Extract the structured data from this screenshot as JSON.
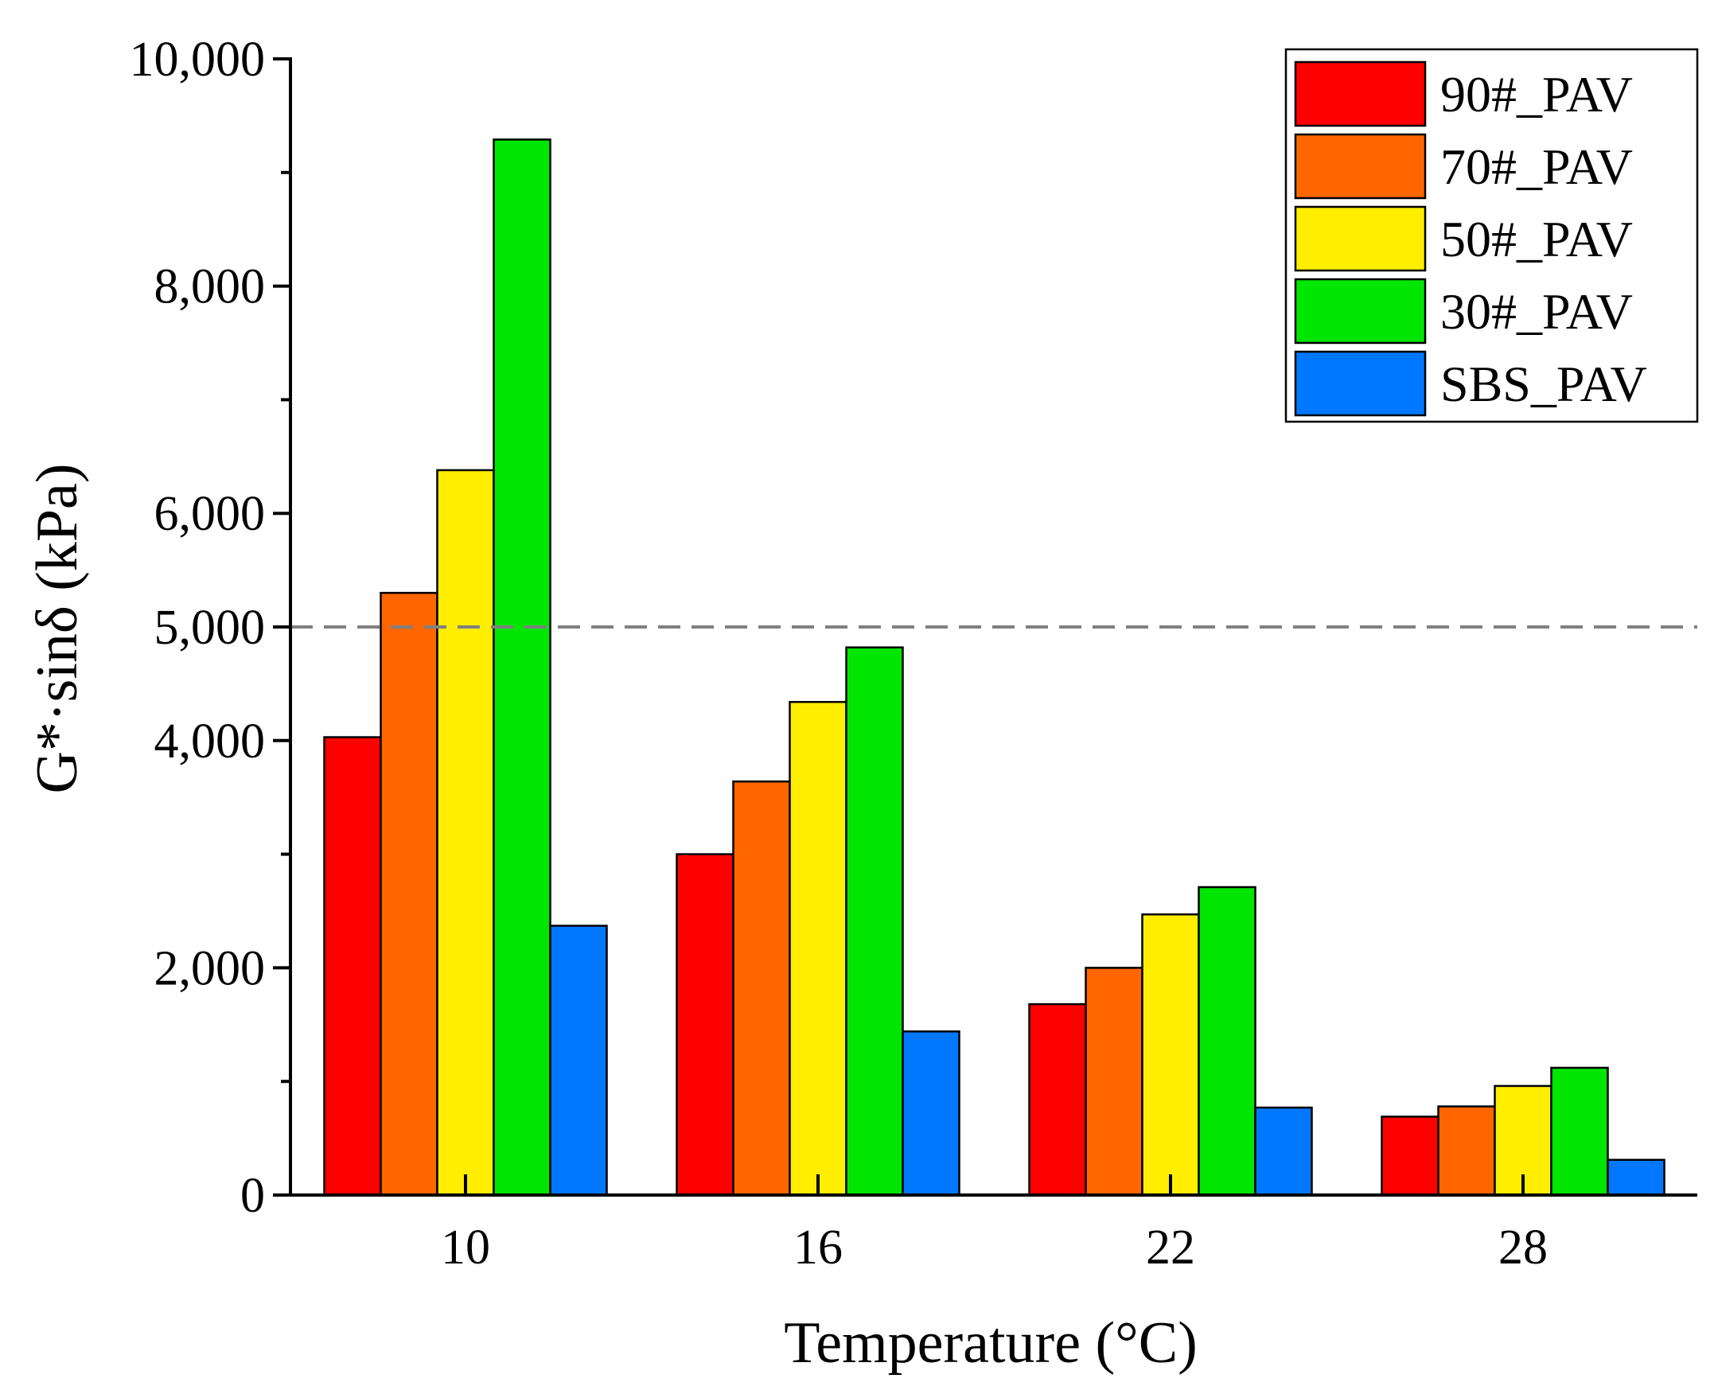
{
  "chart_data": {
    "type": "bar",
    "title": "",
    "xlabel": "Temperature (°C)",
    "ylabel": "G*·sinδ (kPa)",
    "ylim": [
      0,
      10000
    ],
    "y_ticks": [
      {
        "value": 0,
        "label": "0"
      },
      {
        "value": 2000,
        "label": "2,000"
      },
      {
        "value": 4000,
        "label": "4,000"
      },
      {
        "value": 5000,
        "label": "5,000"
      },
      {
        "value": 6000,
        "label": "6,000"
      },
      {
        "value": 8000,
        "label": "8,000"
      },
      {
        "value": 10000,
        "label": "10,000"
      }
    ],
    "y_minor_ticks": [
      1000,
      3000,
      7000,
      9000
    ],
    "categories": [
      "10",
      "16",
      "22",
      "28"
    ],
    "series": [
      {
        "name": "90#_PAV",
        "color": "#ff0000",
        "values": [
          4030,
          3000,
          1680,
          690
        ]
      },
      {
        "name": "70#_PAV",
        "color": "#ff6600",
        "values": [
          5300,
          3640,
          2000,
          780
        ]
      },
      {
        "name": "50#_PAV",
        "color": "#ffee00",
        "values": [
          6380,
          4340,
          2470,
          960
        ]
      },
      {
        "name": "30#_PAV",
        "color": "#00e600",
        "values": [
          9290,
          4820,
          2710,
          1120
        ]
      },
      {
        "name": "SBS_PAV",
        "color": "#0077ff",
        "values": [
          2370,
          1440,
          770,
          310
        ]
      }
    ],
    "reference_line": {
      "value": 5000,
      "color": "#808080",
      "style": "dashed"
    },
    "legend": "top-right",
    "grid": false
  }
}
